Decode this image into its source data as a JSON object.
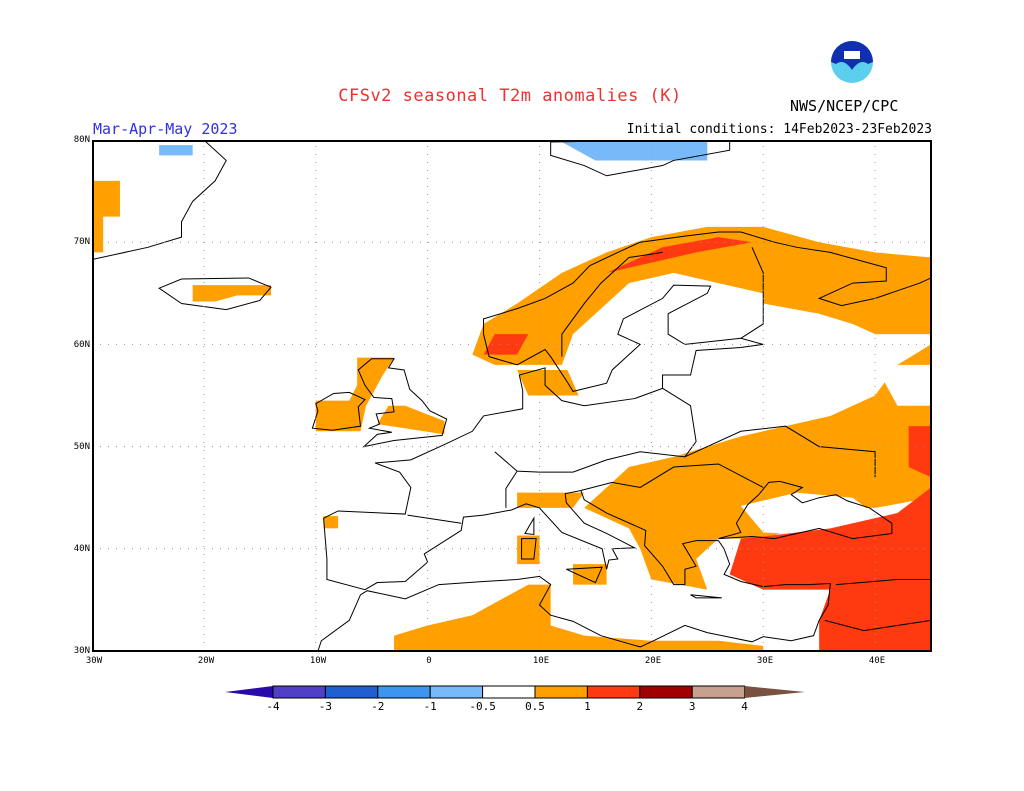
{
  "title": "CFSv2 seasonal T2m anomalies (K)",
  "season": "Mar-Apr-May 2023",
  "initial_conditions": "Initial conditions: 14Feb2023-23Feb2023",
  "organization": "NWS/NCEP/CPC",
  "logo_text": "NOAA",
  "map": {
    "region": "Europe",
    "lon_range": [
      -30,
      45
    ],
    "lat_range": [
      30,
      80
    ],
    "lat_labels": [
      "80N",
      "70N",
      "60N",
      "50N",
      "40N",
      "30N"
    ],
    "lon_labels": [
      "30W",
      "20W",
      "10W",
      "0",
      "10E",
      "20E",
      "30E",
      "40E"
    ],
    "gridlines": "dotted, every 10 degrees"
  },
  "colorbar": {
    "labels": [
      "-4",
      "-3",
      "-2",
      "-1",
      "-0.5",
      "0.5",
      "1",
      "2",
      "3",
      "4"
    ],
    "colors": [
      "#2a0aa8",
      "#5040c8",
      "#1f5fcf",
      "#3c96f0",
      "#78b9fa",
      "#ffffff",
      "#ffa000",
      "#ff3a10",
      "#a00000",
      "#c8a090",
      "#7a5040"
    ]
  }
}
